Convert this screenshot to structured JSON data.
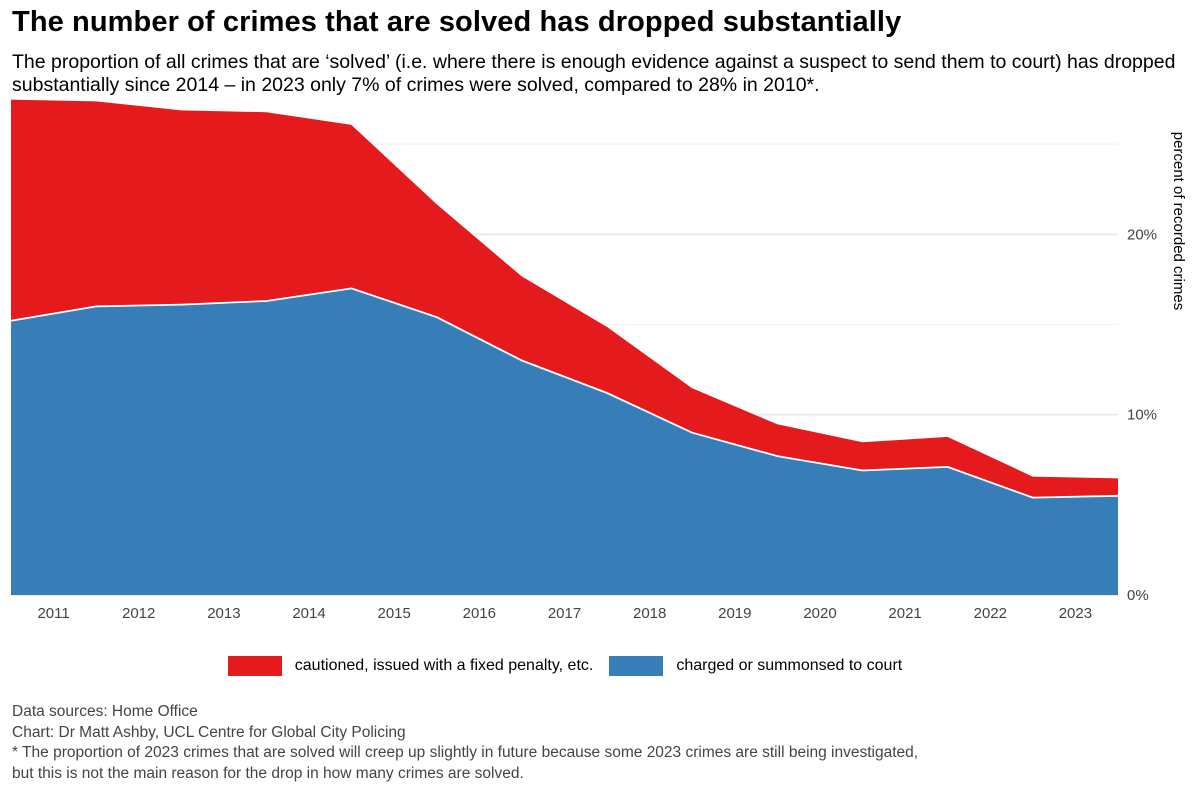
{
  "title": "The number of crimes that are solved has dropped substantially",
  "subtitle": "The proportion of all crimes that are ‘solved’ (i.e. where there is enough evidence against a suspect to send them to court) has dropped substantially since 2014 – in 2023 only 7% of crimes were solved, compared to 28% in 2010*.",
  "chart_data": {
    "type": "area",
    "stacked": true,
    "x": [
      2010.5,
      2011.5,
      2012.5,
      2013.5,
      2014.5,
      2015.5,
      2016.5,
      2017.5,
      2018.5,
      2019.5,
      2020.5,
      2021.5,
      2022.5,
      2023.5
    ],
    "series": [
      {
        "name": "charged or summonsed to court",
        "color": "#377eb8",
        "values": [
          15.2,
          16.0,
          16.1,
          16.3,
          17.0,
          15.4,
          13.0,
          11.2,
          9.0,
          7.7,
          6.9,
          7.1,
          5.4,
          5.5
        ]
      },
      {
        "name": "cautioned, issued with a fixed penalty, etc.",
        "color": "#e41a1c",
        "values": [
          12.3,
          11.4,
          10.8,
          10.5,
          9.1,
          6.3,
          4.7,
          3.7,
          2.5,
          1.8,
          1.6,
          1.7,
          1.2,
          1.0
        ]
      }
    ],
    "x_ticks": [
      "2011",
      "2012",
      "2013",
      "2014",
      "2015",
      "2016",
      "2017",
      "2018",
      "2019",
      "2020",
      "2021",
      "2022",
      "2023"
    ],
    "y_ticks": [
      "0%",
      "10%",
      "20%"
    ],
    "y_tick_values": [
      0,
      10,
      20
    ],
    "y_minor_gridlines": [
      5,
      15,
      25
    ],
    "ylim": [
      0,
      27.5
    ],
    "ylabel": "percent of recorded crimes",
    "xlabel": "",
    "y_axis_side": "right",
    "grid": true,
    "legend_position": "bottom"
  },
  "legend": {
    "items": [
      {
        "label": "cautioned, issued with a fixed penalty, etc.",
        "color": "#e41a1c"
      },
      {
        "label": "charged or summonsed to court",
        "color": "#377eb8"
      }
    ]
  },
  "caption": {
    "lines": [
      "Data sources: Home Office",
      "Chart: Dr Matt Ashby, UCL Centre for Global City Policing",
      "* The proportion of 2023 crimes that are solved will creep up slightly in future because some 2023 crimes are still being investigated,",
      "but this is not the main reason for the drop in how many crimes are solved."
    ]
  }
}
